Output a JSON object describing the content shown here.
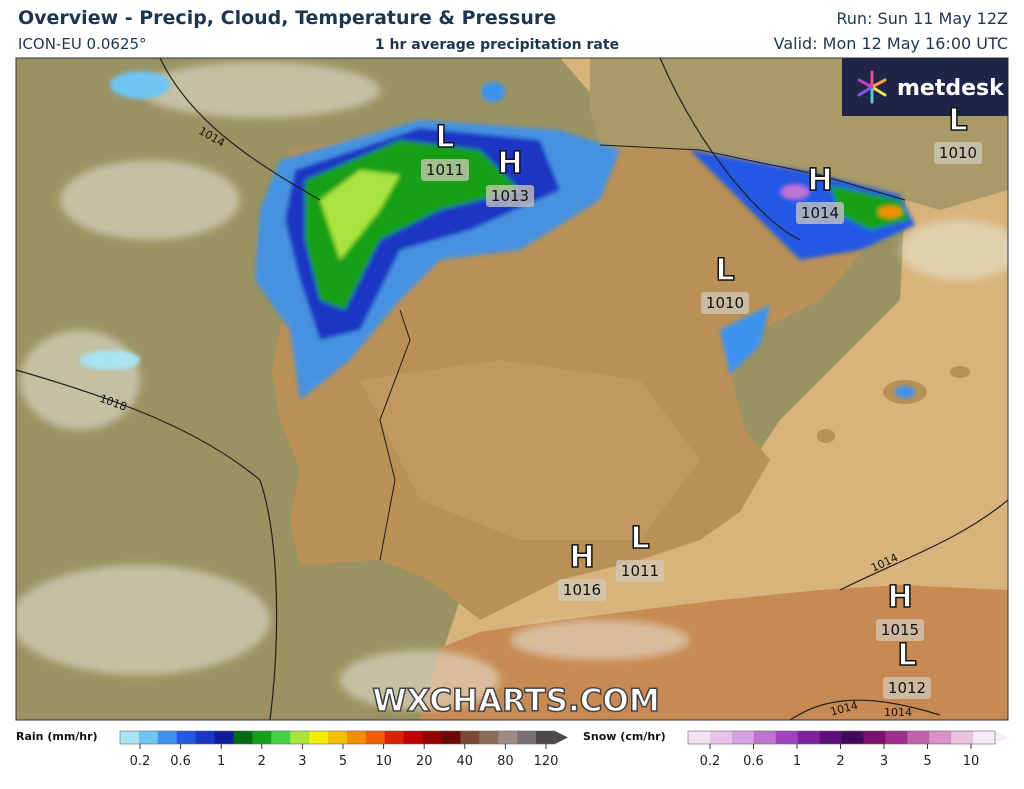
{
  "header": {
    "title": "Overview - Precip, Cloud, Temperature & Pressure",
    "model": "ICON-EU 0.0625°",
    "product": "1 hr average precipitation rate",
    "run": "Run: Sun 11 May 12Z",
    "valid": "Valid: Mon 12 May 16:00 UTC"
  },
  "logo": "metdesk",
  "watermark": "WXCHARTS.COM",
  "pressure_centers": [
    {
      "kind": "L",
      "value": 1011
    },
    {
      "kind": "H",
      "value": 1013
    },
    {
      "kind": "H",
      "value": 1014
    },
    {
      "kind": "L",
      "value": 1010
    },
    {
      "kind": "L",
      "value": 1010
    },
    {
      "kind": "H",
      "value": 1016
    },
    {
      "kind": "L",
      "value": 1011
    },
    {
      "kind": "H",
      "value": 1015
    },
    {
      "kind": "L",
      "value": 1012
    }
  ],
  "isobar_labels": [
    1014,
    1018,
    1014,
    1014,
    1014
  ],
  "legend": {
    "rain": {
      "label": "Rain (mm/hr)",
      "ticks": [
        0.2,
        0.6,
        1,
        2,
        3,
        5,
        10,
        20,
        40,
        80,
        120
      ],
      "colors": [
        "#a8e4f2",
        "#70c4f2",
        "#3c92f0",
        "#2458e4",
        "#1a34c4",
        "#0c1c96",
        "#006a10",
        "#12a018",
        "#46d046",
        "#a8e43c",
        "#f4f000",
        "#f4c000",
        "#f49000",
        "#f05c00",
        "#dc2000",
        "#c00000",
        "#940000",
        "#6c0808",
        "#7a4a34",
        "#8c6c58",
        "#a08c80",
        "#787070",
        "#4c4848"
      ]
    },
    "snow": {
      "label": "Snow (cm/hr)",
      "ticks": [
        0.2,
        0.6,
        1,
        2,
        3,
        5,
        10
      ],
      "colors": [
        "#f4e2f4",
        "#e8c4ec",
        "#d8a2e2",
        "#c074d2",
        "#a244c0",
        "#80229e",
        "#5c107c",
        "#420a5c",
        "#7c106c",
        "#a0308e",
        "#c062ae",
        "#d892c8",
        "#ecc2e2",
        "#f8eaf6"
      ]
    }
  }
}
